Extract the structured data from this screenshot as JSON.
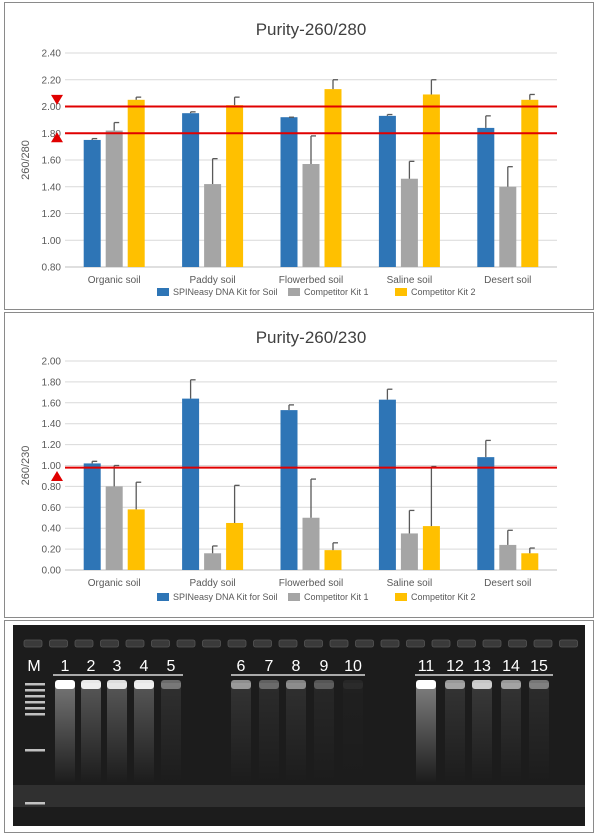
{
  "colors": {
    "series": [
      "#2e75b6",
      "#a5a5a5",
      "#ffc000"
    ],
    "threshold": "#e00000",
    "marker": "#e00000",
    "grid": "#d9d9d9",
    "text": "#595959"
  },
  "chart_data": [
    {
      "type": "bar",
      "title": "Purity-260/280",
      "xlabel": "",
      "ylabel": "260/280",
      "ylim": [
        0.8,
        2.4
      ],
      "yticks": [
        "0.80",
        "1.00",
        "1.20",
        "1.40",
        "1.60",
        "1.80",
        "2.00",
        "2.20",
        "2.40"
      ],
      "ytick_values": [
        0.8,
        1.0,
        1.2,
        1.4,
        1.6,
        1.8,
        2.0,
        2.2,
        2.4
      ],
      "categories": [
        "Organic soil",
        "Paddy soil",
        "Flowerbed soil",
        "Saline soil",
        "Desert soil"
      ],
      "series": [
        {
          "name": "SPINeasy DNA Kit for Soil",
          "values": [
            1.75,
            1.95,
            1.92,
            1.93,
            1.84
          ],
          "errors": [
            0.01,
            0.01,
            0.0,
            0.01,
            0.09
          ]
        },
        {
          "name": "Competitor Kit 1",
          "values": [
            1.82,
            1.42,
            1.57,
            1.46,
            1.4
          ],
          "errors": [
            0.06,
            0.19,
            0.21,
            0.13,
            0.15
          ]
        },
        {
          "name": "Competitor Kit 2",
          "values": [
            2.05,
            2.01,
            2.13,
            2.09,
            2.05
          ],
          "errors": [
            0.02,
            0.06,
            0.07,
            0.11,
            0.04
          ]
        }
      ],
      "thresholds": [
        2.0,
        1.8
      ],
      "markers": [
        {
          "value": 2.05,
          "direction": "down"
        },
        {
          "value": 1.77,
          "direction": "up"
        }
      ],
      "legend_position": "bottom"
    },
    {
      "type": "bar",
      "title": "Purity-260/230",
      "xlabel": "",
      "ylabel": "260/230",
      "ylim": [
        0.0,
        2.0
      ],
      "yticks": [
        "0.00",
        "0.20",
        "0.40",
        "0.60",
        "0.80",
        "1.00",
        "1.20",
        "1.40",
        "1.60",
        "1.80",
        "2.00"
      ],
      "ytick_values": [
        0.0,
        0.2,
        0.4,
        0.6,
        0.8,
        1.0,
        1.2,
        1.4,
        1.6,
        1.8,
        2.0
      ],
      "categories": [
        "Organic soil",
        "Paddy soil",
        "Flowerbed soil",
        "Saline soil",
        "Desert soil"
      ],
      "series": [
        {
          "name": "SPINeasy DNA Kit for Soil",
          "values": [
            1.02,
            1.64,
            1.53,
            1.63,
            1.08
          ],
          "errors": [
            0.02,
            0.18,
            0.05,
            0.1,
            0.16
          ]
        },
        {
          "name": "Competitor Kit 1",
          "values": [
            0.8,
            0.16,
            0.5,
            0.35,
            0.24
          ],
          "errors": [
            0.2,
            0.07,
            0.37,
            0.22,
            0.14
          ]
        },
        {
          "name": "Competitor Kit 2",
          "values": [
            0.58,
            0.45,
            0.19,
            0.42,
            0.16
          ],
          "errors": [
            0.26,
            0.36,
            0.07,
            0.57,
            0.05
          ]
        }
      ],
      "thresholds": [
        0.98
      ],
      "markers": [
        {
          "value": 0.9,
          "direction": "up"
        }
      ],
      "legend_position": "bottom"
    }
  ],
  "gel": {
    "marker_label": "M",
    "lane_labels": [
      "1",
      "2",
      "3",
      "4",
      "5",
      "6",
      "7",
      "8",
      "9",
      "10",
      "11",
      "12",
      "13",
      "14",
      "15"
    ],
    "band_intensity": [
      1.0,
      0.9,
      0.85,
      0.9,
      0.35,
      0.5,
      0.3,
      0.45,
      0.25,
      0.05,
      1.0,
      0.55,
      0.75,
      0.55,
      0.4
    ],
    "smear_intensity": [
      0.45,
      0.3,
      0.3,
      0.3,
      0.1,
      0.12,
      0.08,
      0.1,
      0.06,
      0.02,
      0.5,
      0.12,
      0.15,
      0.12,
      0.08
    ]
  }
}
